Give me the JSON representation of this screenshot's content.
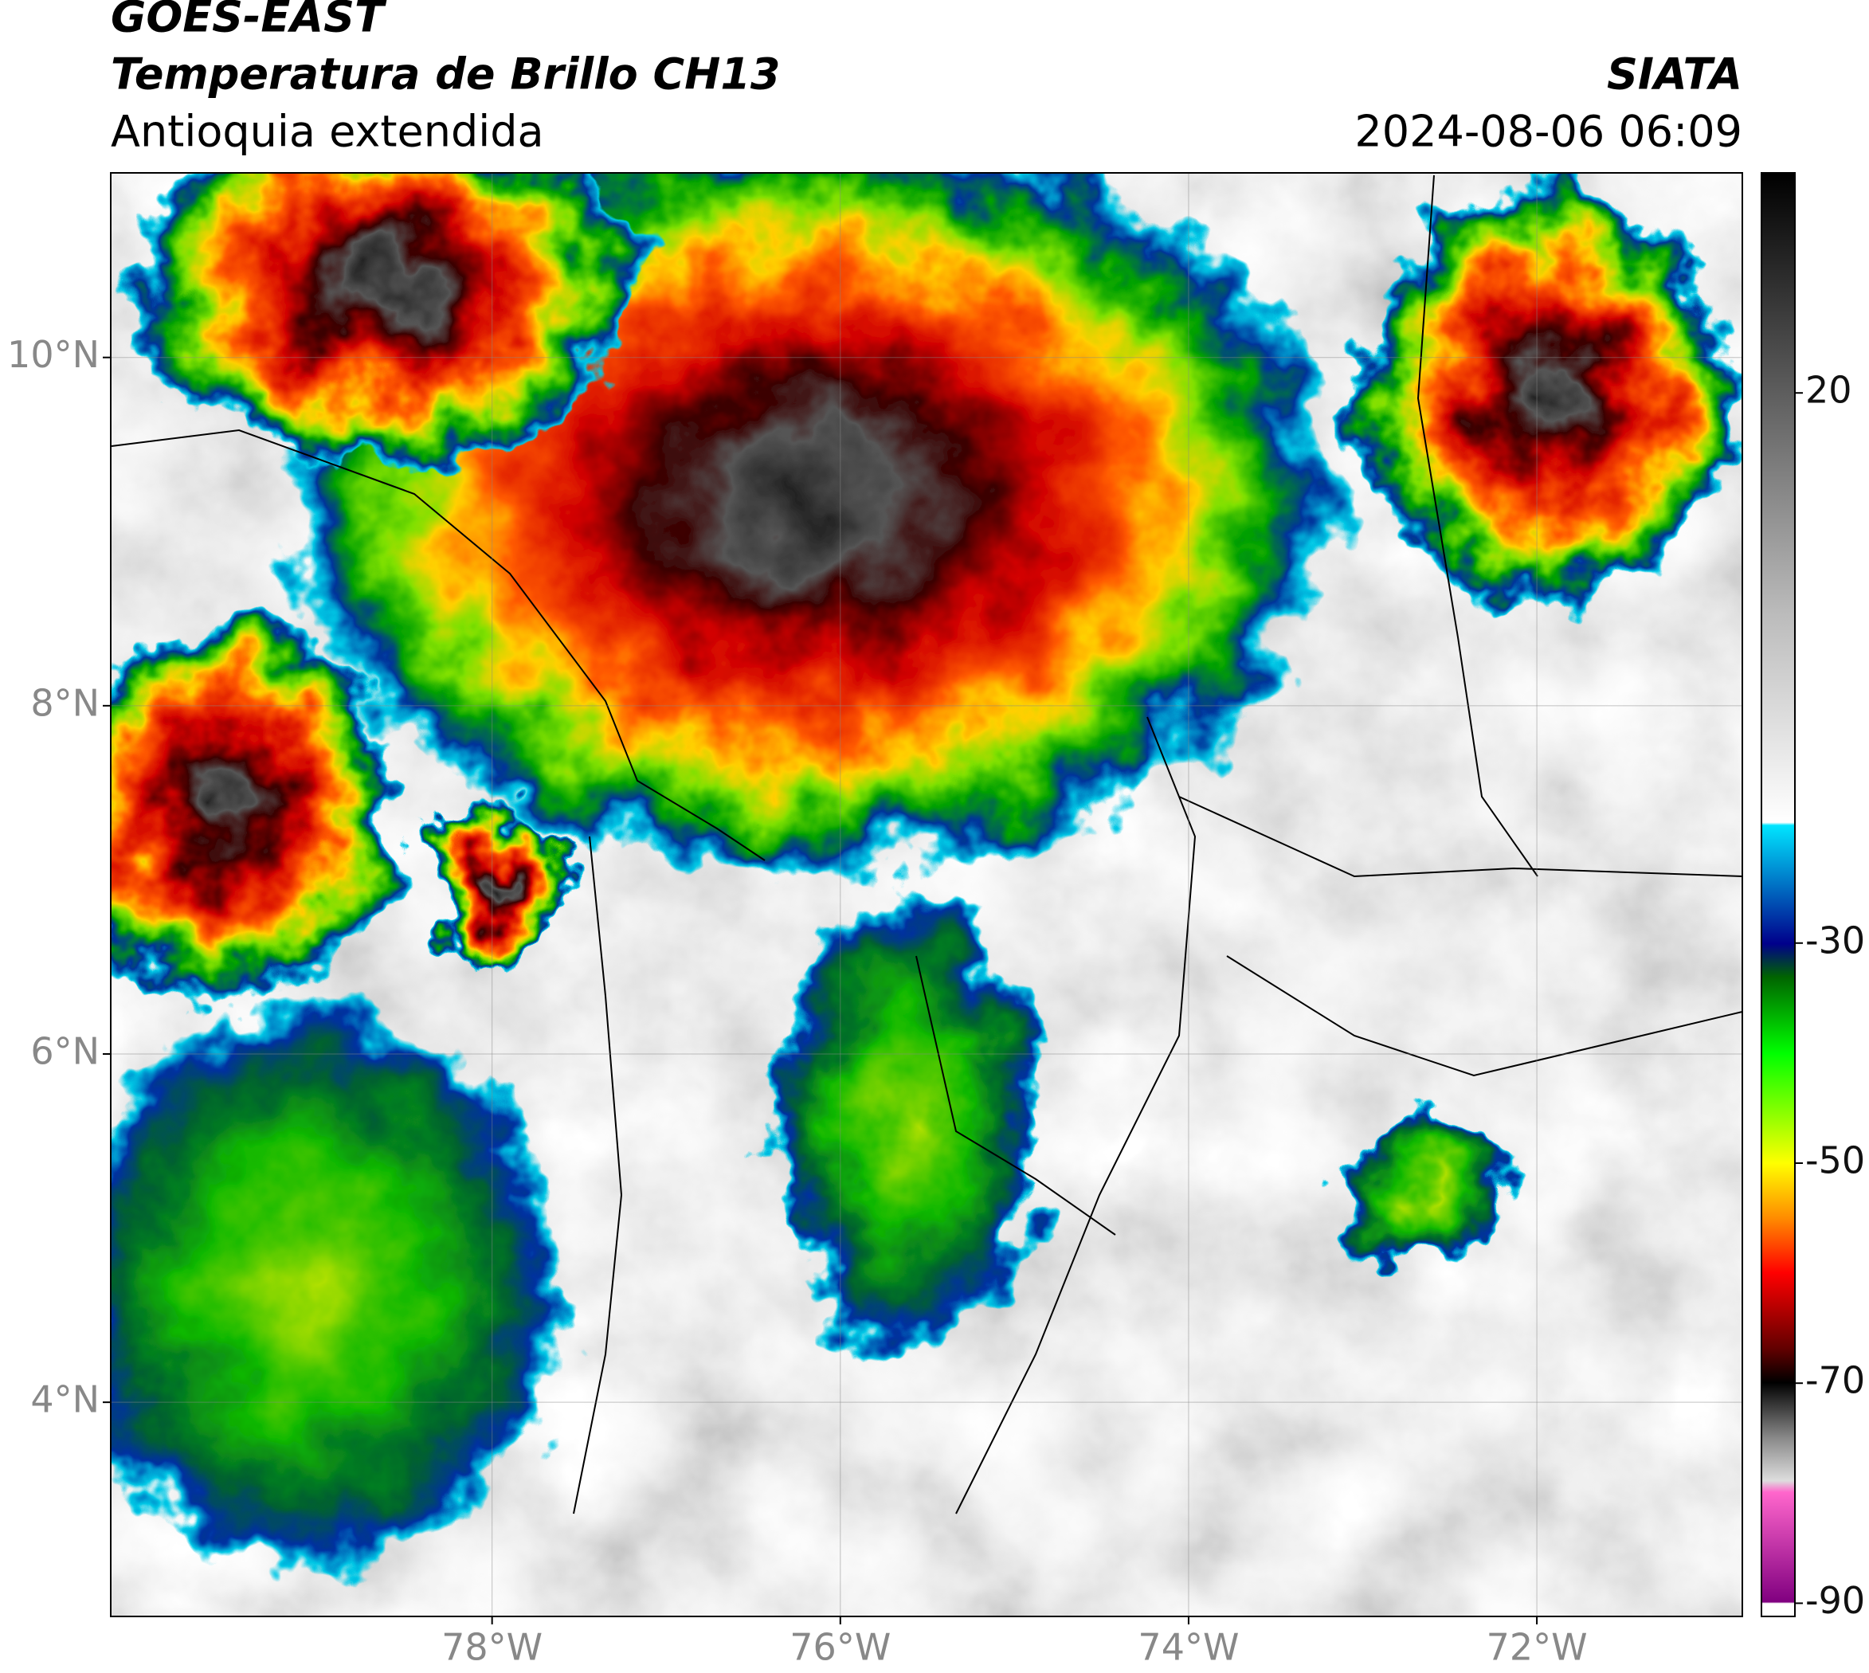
{
  "header": {
    "title": "GOES-EAST",
    "subtitle": "Temperatura de Brillo CH13",
    "region": "Antioquia extendida",
    "source": "SIATA",
    "datetime": "2024-08-06 06:09"
  },
  "map": {
    "xlim": [
      -80.19,
      -70.82
    ],
    "ylim": [
      2.77,
      11.06
    ],
    "xticks": [
      {
        "value": -78,
        "label": "78°W"
      },
      {
        "value": -76,
        "label": "76°W"
      },
      {
        "value": -74,
        "label": "74°W"
      },
      {
        "value": -72,
        "label": "72°W"
      }
    ],
    "yticks": [
      {
        "value": 4,
        "label": "4°N"
      },
      {
        "value": 6,
        "label": "6°N"
      },
      {
        "value": 8,
        "label": "8°N"
      },
      {
        "value": 10,
        "label": "10°N"
      }
    ],
    "grid": true
  },
  "colorbar": {
    "lim": [
      -91.2,
      40
    ],
    "ticks": [
      20,
      -30,
      -50,
      -70,
      -90
    ]
  }
}
